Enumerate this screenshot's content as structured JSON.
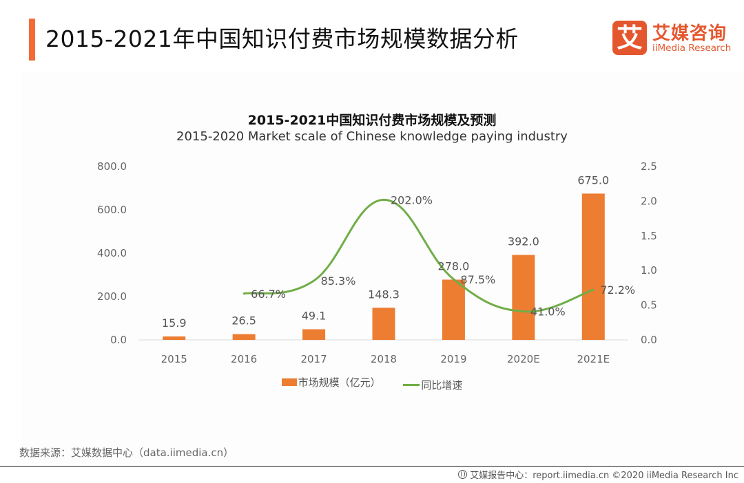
{
  "header": {
    "title": "2015-2021年中国知识付费市场规模数据分析",
    "accent_color": "#f26b36"
  },
  "logo": {
    "glyph": "艾",
    "name_cn": "艾媒咨询",
    "name_en": "iiMedia Research",
    "color": "#e4572e"
  },
  "chart_data": {
    "type": "bar",
    "title": "2015-2021中国知识付费市场规模及预测",
    "subtitle": "2015-2020 Market scale of Chinese knowledge paying industry",
    "categories": [
      "2015",
      "2016",
      "2017",
      "2018",
      "2019",
      "2020E",
      "2021E"
    ],
    "series": [
      {
        "name": "市场规模（亿元）",
        "type": "bar",
        "axis": "left",
        "color": "#ed7d31",
        "values": [
          15.9,
          26.5,
          49.1,
          148.3,
          278.0,
          392.0,
          675.0
        ],
        "labels": [
          "15.9",
          "26.5",
          "49.1",
          "148.3",
          "278.0",
          "392.0",
          "675.0"
        ]
      },
      {
        "name": "同比增速",
        "type": "line",
        "smooth": true,
        "axis": "right",
        "color": "#70ad47",
        "values": [
          null,
          0.667,
          0.853,
          2.02,
          0.875,
          0.41,
          0.722
        ],
        "labels": [
          null,
          "66.7%",
          "85.3%",
          "202.0%",
          "87.5%",
          "41.0%",
          "72.2%"
        ]
      }
    ],
    "y_left": {
      "min": 0,
      "max": 800,
      "ticks": [
        "0.0",
        "200.0",
        "400.0",
        "600.0",
        "800.0"
      ],
      "tick_values": [
        0,
        200,
        400,
        600,
        800
      ]
    },
    "y_right": {
      "min": 0,
      "max": 2.5,
      "ticks": [
        "0.0",
        "0.5",
        "1.0",
        "1.5",
        "2.0",
        "2.5"
      ],
      "tick_values": [
        0,
        0.5,
        1.0,
        1.5,
        2.0,
        2.5
      ]
    },
    "xlabel": "",
    "ylabel": "",
    "grid": false,
    "legend_position": "bottom"
  },
  "source": "数据来源：艾媒数据中心（data.iimedia.cn）",
  "footer": {
    "text": "艾媒报告中心：report.iimedia.cn  ©2020  iiMedia Research  Inc"
  }
}
